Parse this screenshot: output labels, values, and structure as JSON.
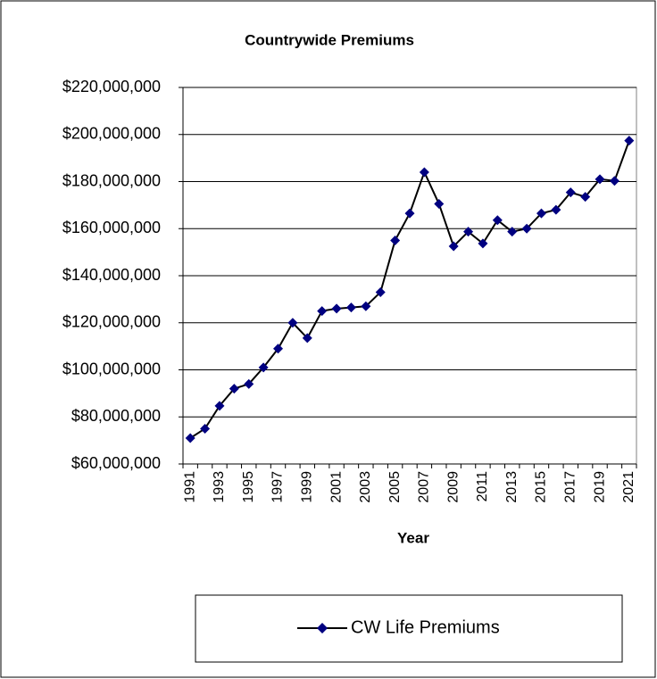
{
  "chart_data": {
    "type": "line",
    "title": "Countrywide Premiums",
    "x_label": "Year",
    "categories": [
      "1991",
      null,
      "1993",
      null,
      "1995",
      null,
      "1997",
      null,
      "1999",
      null,
      "2001",
      null,
      "2003",
      null,
      "2005",
      null,
      "2007",
      null,
      "2009",
      null,
      "2011",
      null,
      "2013",
      null,
      "2015",
      null,
      "2017",
      null,
      "2019",
      null,
      "2021"
    ],
    "series": [
      {
        "name": "CW Life Premiums",
        "color": "#000080",
        "line_color": "#000000",
        "values": [
          71000000,
          75000000,
          84700000,
          92000000,
          94000000,
          101000000,
          109000000,
          120000000,
          113500000,
          125000000,
          126000000,
          126500000,
          127000000,
          133000000,
          155000000,
          166500000,
          184000000,
          170500000,
          152500000,
          158700000,
          153700000,
          163600000,
          158700000,
          160000000,
          166500000,
          168000000,
          175400000,
          173500000,
          181000000,
          180300000,
          197400000
        ]
      }
    ],
    "ylim": [
      60000000,
      220000000
    ],
    "yticks": [
      {
        "value": 60000000,
        "label": "$60,000,000"
      },
      {
        "value": 80000000,
        "label": "$80,000,000"
      },
      {
        "value": 100000000,
        "label": "$100,000,000"
      },
      {
        "value": 120000000,
        "label": "$120,000,000"
      },
      {
        "value": 140000000,
        "label": "$140,000,000"
      },
      {
        "value": 160000000,
        "label": "$160,000,000"
      },
      {
        "value": 180000000,
        "label": "$180,000,000"
      },
      {
        "value": 200000000,
        "label": "$200,000,000"
      },
      {
        "value": 220000000,
        "label": "$220,000,000"
      }
    ],
    "grid": true,
    "legend": "bottom"
  }
}
